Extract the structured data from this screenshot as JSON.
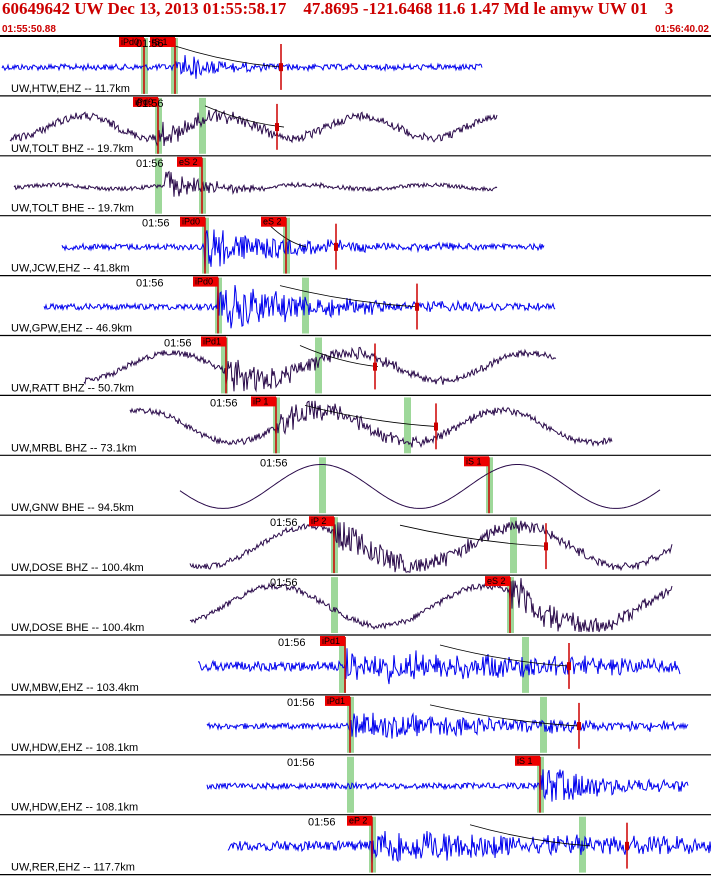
{
  "header": {
    "title": "60649642 UW Dec 13, 2013 01:55:58.17    47.8695 -121.6468 11.6 1.47 Md le amyw UW 01    3",
    "start_time": "01:55:50.88",
    "end_time": "01:56:40.02"
  },
  "colors": {
    "header_text": "#cc0000",
    "pick_box": "#ee0000",
    "pick_line": "#cc0000",
    "window_fill": "#9ed89a",
    "trace_blue": "#0000ee",
    "trace_dark": "#2a0a4a",
    "divider": "#000000"
  },
  "traces": [
    {
      "label": "UW,HTW,EHZ -- 11.7km",
      "tick": "01:56",
      "color": "blue",
      "style": "spiky",
      "x0": 2,
      "x1": 482,
      "amp": 3,
      "base": "flat",
      "onset": 175,
      "burstAmp": 16,
      "decay": 40,
      "picks": [
        {
          "text": "iPd0",
          "x": 144
        },
        {
          "text": "iS 1",
          "x": 175
        }
      ],
      "windows": [
        144,
        174
      ],
      "redmark": 281,
      "curve": {
        "from": 175,
        "to": 282
      }
    },
    {
      "label": "UW,TOLT BHZ -- 19.7km",
      "tick": "01:56",
      "color": "dark",
      "style": "wavy",
      "x0": 10,
      "x1": 497,
      "amp": 4,
      "base": "wave",
      "baseAmp": 11,
      "baseFreq": 0.045,
      "onset": 157,
      "burstAmp": 14,
      "decay": 60,
      "picks": [
        {
          "text": "iPd0",
          "x": 158
        }
      ],
      "windows": [
        158,
        202
      ],
      "redmark": 277,
      "curve": {
        "from": 205,
        "to": 284
      }
    },
    {
      "label": "UW,TOLT BHE -- 19.7km",
      "tick": "01:56",
      "color": "dark",
      "style": "wavy",
      "x0": 14,
      "x1": 497,
      "amp": 2,
      "base": "wave",
      "baseAmp": 2,
      "baseFreq": 0.05,
      "onset": 165,
      "burstAmp": 15,
      "decay": 45,
      "picks": [
        {
          "text": "eS 2",
          "x": 202
        }
      ],
      "windows": [
        158,
        202
      ],
      "redmark": null,
      "curve": null
    },
    {
      "label": "UW,JCW,EHZ -- 41.8km",
      "tick": "01:56",
      "color": "blue",
      "style": "spiky",
      "x0": 62,
      "x1": 544,
      "amp": 3,
      "base": "flat",
      "onset": 205,
      "burstAmp": 22,
      "decay": 90,
      "picks": [
        {
          "text": "iPd0",
          "x": 205
        },
        {
          "text": "eS 2",
          "x": 286
        }
      ],
      "windows": [
        205,
        286
      ],
      "redmark": 336,
      "curve": {
        "from": 270,
        "to": 306
      }
    },
    {
      "label": "UW,GPW,EHZ -- 46.9km",
      "tick": "01:56",
      "color": "blue",
      "style": "spiky",
      "x0": 44,
      "x1": 555,
      "amp": 3,
      "base": "flat",
      "onset": 218,
      "burstAmp": 24,
      "decay": 110,
      "picks": [
        {
          "text": "iPd0",
          "x": 218
        }
      ],
      "windows": [
        218,
        305
      ],
      "redmark": 417,
      "curve": {
        "from": 280,
        "to": 417
      }
    },
    {
      "label": "UW,RATT BHZ -- 50.7km",
      "tick": "01:56",
      "color": "dark",
      "style": "wavy",
      "x0": 84,
      "x1": 556,
      "amp": 3,
      "base": "wave",
      "baseAmp": 14,
      "baseFreq": 0.035,
      "onset": 225,
      "burstAmp": 16,
      "decay": 110,
      "picks": [
        {
          "text": "iPd1",
          "x": 226
        }
      ],
      "windows": [
        224,
        318
      ],
      "redmark": 375,
      "curve": {
        "from": 300,
        "to": 378
      }
    },
    {
      "label": "UW,MRBL BHZ -- 73.1km",
      "tick": "01:56",
      "color": "dark",
      "style": "wavy",
      "x0": 130,
      "x1": 612,
      "amp": 3,
      "base": "wave",
      "baseAmp": 16,
      "baseFreq": 0.035,
      "onset": 276,
      "burstAmp": 14,
      "decay": 100,
      "picks": [
        {
          "text": "iP 1",
          "x": 276
        }
      ],
      "windows": [
        276,
        407
      ],
      "redmark": 436,
      "curve": {
        "from": 305,
        "to": 437
      }
    },
    {
      "label": "UW,GNW BHE -- 94.5km",
      "tick": "01:56",
      "color": "dark",
      "style": "smooth",
      "x0": 180,
      "x1": 660,
      "amp": 1,
      "base": "wave",
      "baseAmp": 22,
      "baseFreq": 0.032,
      "onset": null,
      "burstAmp": 0,
      "decay": 0,
      "picks": [
        {
          "text": "iS 1",
          "x": 489
        }
      ],
      "windows": [
        322,
        489
      ],
      "redmark": null,
      "curve": null
    },
    {
      "label": "UW,DOSE BHZ -- 100.4km",
      "tick": "01:56",
      "color": "dark",
      "style": "wavy",
      "x0": 190,
      "x1": 672,
      "amp": 3,
      "base": "wave",
      "baseAmp": 20,
      "baseFreq": 0.03,
      "onset": 334,
      "burstAmp": 14,
      "decay": 160,
      "picks": [
        {
          "text": "iP 2",
          "x": 334
        }
      ],
      "windows": [
        334,
        513
      ],
      "redmark": 546,
      "curve": {
        "from": 400,
        "to": 547
      }
    },
    {
      "label": "UW,DOSE BHE -- 100.4km",
      "tick": "01:56",
      "color": "dark",
      "style": "wavy",
      "x0": 190,
      "x1": 672,
      "amp": 3,
      "base": "wave",
      "baseAmp": 20,
      "baseFreq": 0.03,
      "onset": 510,
      "burstAmp": 22,
      "decay": 80,
      "picks": [
        {
          "text": "eS 2",
          "x": 510
        }
      ],
      "windows": [
        334,
        510
      ],
      "redmark": null,
      "curve": null
    },
    {
      "label": "UW,MBW,EHZ -- 103.4km",
      "tick": "01:56",
      "color": "blue",
      "style": "spiky",
      "x0": 198,
      "x1": 680,
      "amp": 5,
      "base": "flat",
      "onset": 345,
      "burstAmp": 16,
      "decay": 240,
      "picks": [
        {
          "text": "iPd1",
          "x": 345
        }
      ],
      "windows": [
        342,
        525
      ],
      "redmark": 569,
      "curve": {
        "from": 440,
        "to": 570
      }
    },
    {
      "label": "UW,HDW,EHZ -- 108.1km",
      "tick": "01:56",
      "color": "blue",
      "style": "spiky",
      "x0": 207,
      "x1": 688,
      "amp": 3,
      "base": "flat",
      "onset": 350,
      "burstAmp": 12,
      "decay": 240,
      "picks": [
        {
          "text": "iPd1",
          "x": 350
        }
      ],
      "windows": [
        350,
        543
      ],
      "redmark": 579,
      "curve": {
        "from": 430,
        "to": 580
      }
    },
    {
      "label": "UW,HDW,EHZ -- 108.1km",
      "tick": "01:56",
      "color": "blue",
      "style": "spiky",
      "x0": 207,
      "x1": 688,
      "amp": 3,
      "base": "flat",
      "onset": 540,
      "burstAmp": 20,
      "decay": 80,
      "picks": [
        {
          "text": "iS 1",
          "x": 540
        }
      ],
      "windows": [
        350,
        540
      ],
      "redmark": null,
      "curve": null
    },
    {
      "label": "UW,RER,EHZ -- 117.7km",
      "tick": "01:56",
      "color": "blue",
      "style": "spiky",
      "x0": 228,
      "x1": 711,
      "amp": 5,
      "base": "flat",
      "onset": 372,
      "burstAmp": 18,
      "decay": 260,
      "picks": [
        {
          "text": "eP 2",
          "x": 372
        }
      ],
      "windows": [
        372,
        582
      ],
      "redmark": 627,
      "curve": {
        "from": 470,
        "to": 590
      }
    }
  ]
}
